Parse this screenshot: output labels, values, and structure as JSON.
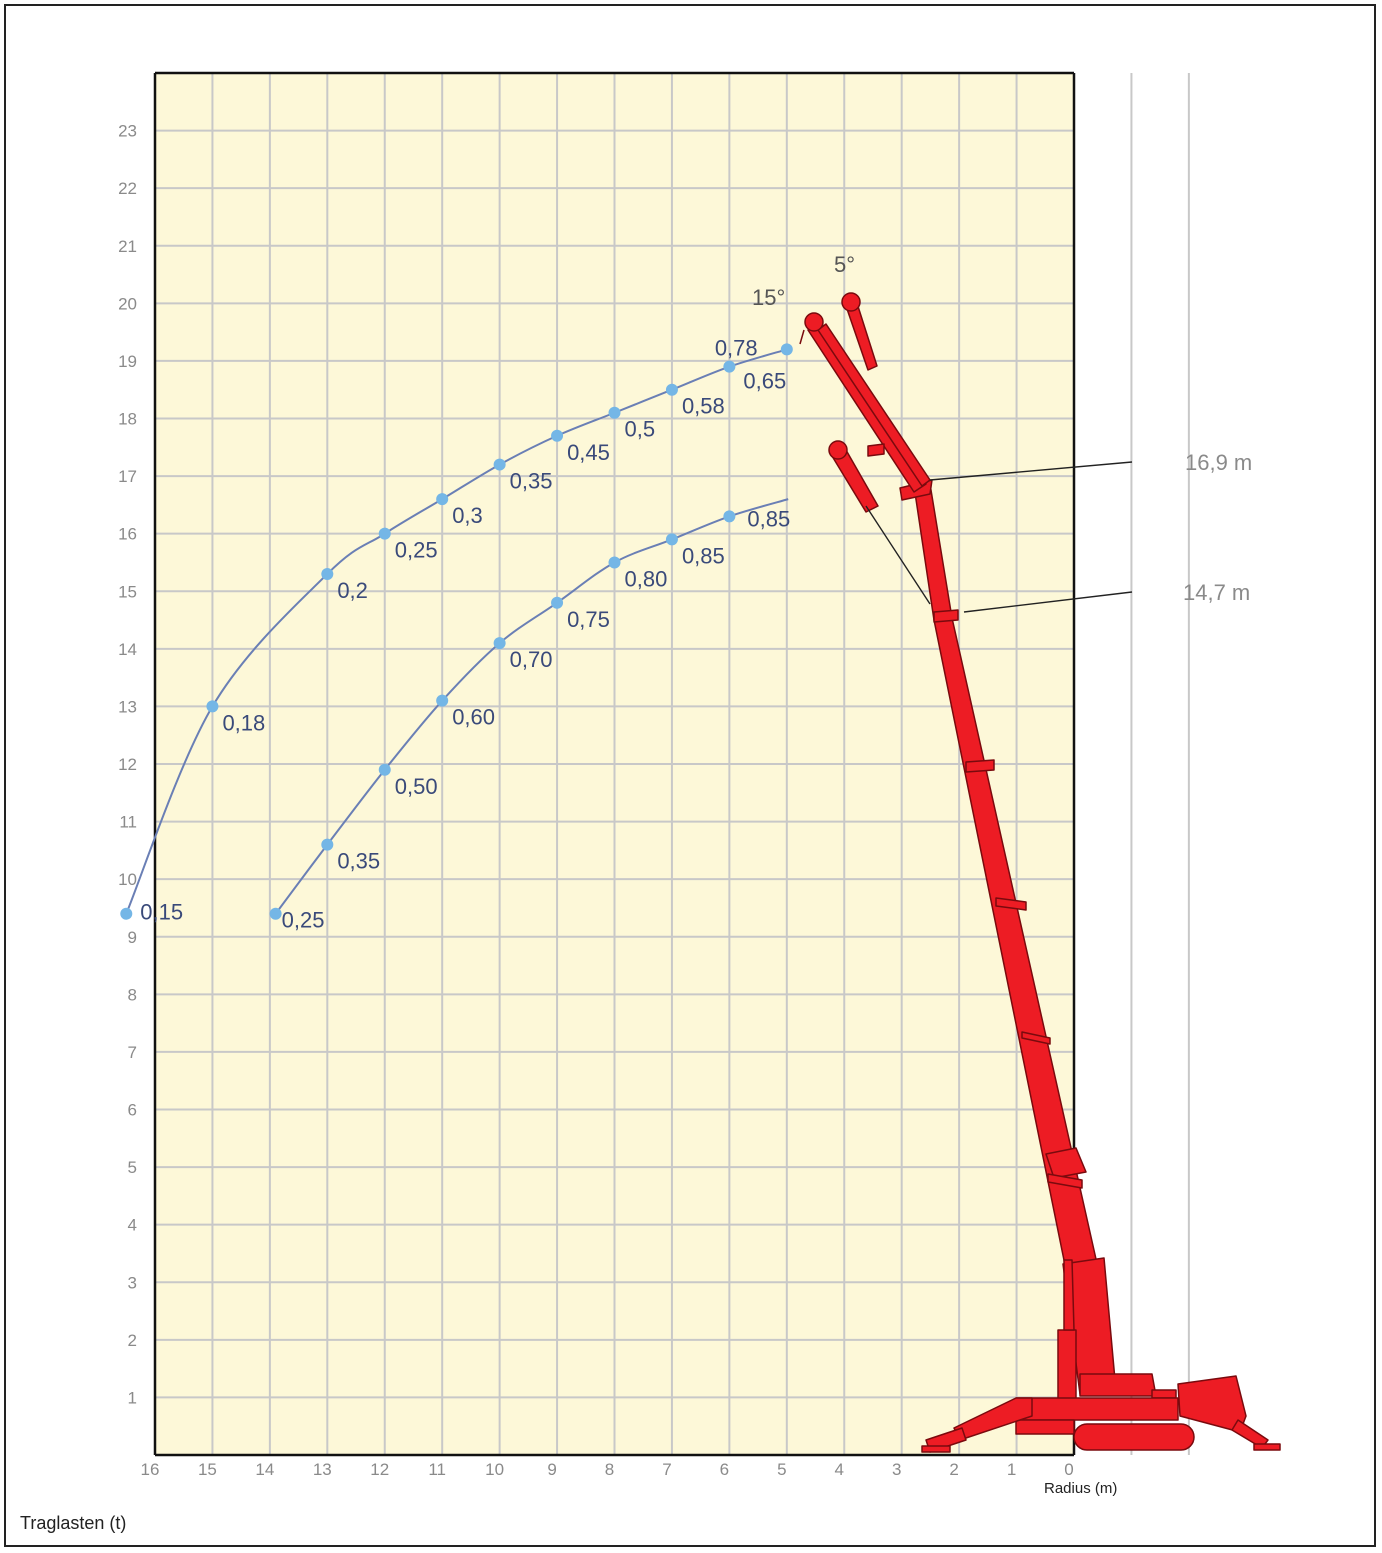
{
  "chart_data": {
    "type": "line",
    "title": "",
    "xlabel": "Radius (m)",
    "ylabel": "Traglasten (t)",
    "x_ticks": [
      "16",
      "15",
      "14",
      "13",
      "12",
      "11",
      "10",
      "9",
      "8",
      "7",
      "6",
      "5",
      "4",
      "3",
      "2",
      "1",
      "0"
    ],
    "y_ticks": [
      "1",
      "2",
      "3",
      "4",
      "5",
      "6",
      "7",
      "8",
      "9",
      "10",
      "11",
      "12",
      "13",
      "14",
      "15",
      "16",
      "17",
      "18",
      "19",
      "20",
      "21",
      "22",
      "23"
    ],
    "xlim": [
      16,
      0
    ],
    "ylim": [
      0,
      24
    ],
    "grid": true,
    "colors": {
      "plot_bg": "#fdf8d8",
      "grid": "#c8c8c8",
      "curve": "#6a7fb5",
      "point": "#74b6e6",
      "crane": "#ed1c24"
    },
    "series": [
      {
        "name": "16,9 m",
        "points": [
          {
            "x": 16.5,
            "y": 9.4,
            "label": "0,15"
          },
          {
            "x": 15,
            "y": 13.0,
            "label": "0,18"
          },
          {
            "x": 13,
            "y": 15.3,
            "label": "0,2"
          },
          {
            "x": 12,
            "y": 16.0,
            "label": "0,25"
          },
          {
            "x": 11,
            "y": 16.6,
            "label": "0,3"
          },
          {
            "x": 10,
            "y": 17.2,
            "label": "0,35"
          },
          {
            "x": 9,
            "y": 17.7,
            "label": "0,45"
          },
          {
            "x": 8,
            "y": 18.1,
            "label": "0,5"
          },
          {
            "x": 7,
            "y": 18.5,
            "label": "0,58"
          },
          {
            "x": 6,
            "y": 18.9,
            "label": "0,65"
          },
          {
            "x": 5,
            "y": 19.2,
            "label": "0,78"
          }
        ]
      },
      {
        "name": "14,7 m",
        "points": [
          {
            "x": 13.9,
            "y": 9.4,
            "label": "0,25"
          },
          {
            "x": 13,
            "y": 10.6,
            "label": "0,35"
          },
          {
            "x": 12,
            "y": 11.9,
            "label": "0,50"
          },
          {
            "x": 11,
            "y": 13.1,
            "label": "0,60"
          },
          {
            "x": 10,
            "y": 14.1,
            "label": "0,70"
          },
          {
            "x": 9,
            "y": 14.8,
            "label": "0,75"
          },
          {
            "x": 8,
            "y": 15.5,
            "label": "0,80"
          },
          {
            "x": 7,
            "y": 15.9,
            "label": "0,85"
          },
          {
            "x": 6,
            "y": 16.3,
            "label": "0,85"
          }
        ]
      }
    ],
    "annotations": {
      "boom_long": "16,9 m",
      "boom_short": "14,7 m",
      "angle_15": "15°",
      "angle_5": "5°"
    }
  }
}
